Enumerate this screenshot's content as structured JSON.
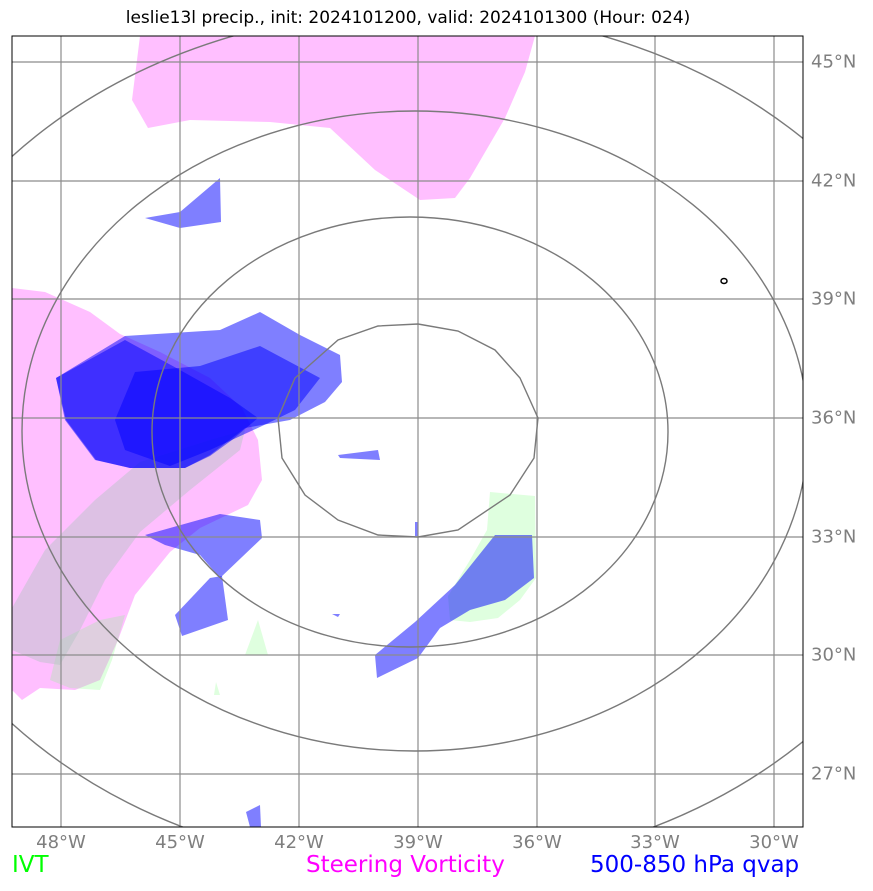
{
  "title": "leslie13l precip., init: 2024101200, valid: 2024101300 (Hour: 024)",
  "map": {
    "lon_range_deg": [
      -49.0,
      -29.0
    ],
    "lat_range_deg": [
      25.8,
      45.8
    ],
    "lon_ticks": [
      "48°W",
      "45°W",
      "42°W",
      "39°W",
      "36°W",
      "33°W",
      "30°W"
    ],
    "lat_ticks": [
      "45°N",
      "42°N",
      "39°N",
      "36°N",
      "33°N",
      "30°N",
      "27°N"
    ],
    "gridlines": true,
    "range_rings_center": {
      "lon": -39.0,
      "lat": 35.0
    },
    "range_rings_count": 4,
    "colors": {
      "ivt": "#7fff7f",
      "steering_vorticity": "#ff66ff",
      "qvap": "#0000ff",
      "gridline": "#8c8c8c",
      "ring": "#7a7a7a",
      "tick_label": "#7f7f7f"
    }
  },
  "legend": {
    "ivt": "IVT",
    "steering_vorticity": "Steering Vorticity",
    "qvap": "500-850 hPa qvap"
  }
}
